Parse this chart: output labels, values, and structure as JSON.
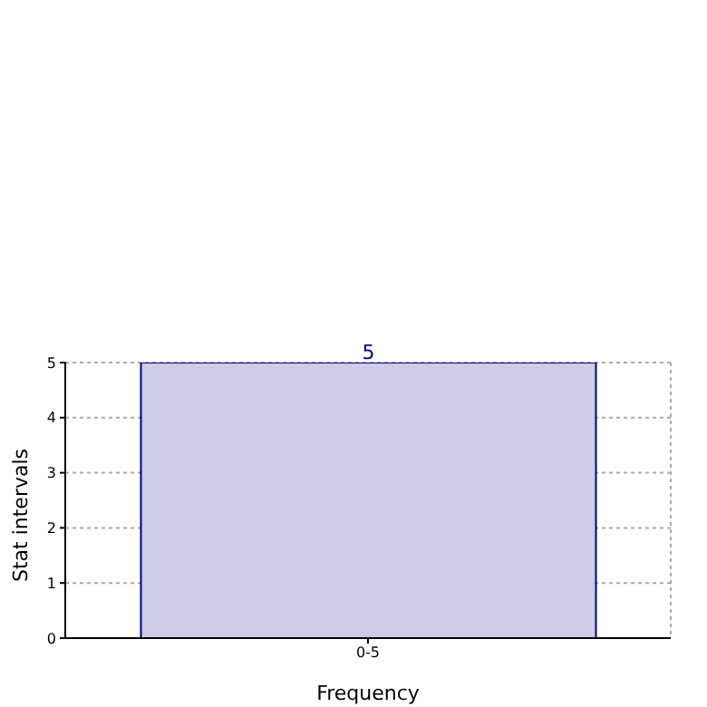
{
  "chart_data": {
    "type": "bar",
    "xlabel": "Frequency",
    "ylabel": "Stat intervals",
    "categories": [
      "0-5"
    ],
    "series": [
      {
        "color": "#ccccE5",
        "values": [
          5
        ]
      }
    ],
    "ylim": [
      0,
      5
    ],
    "yticks": [
      0,
      1,
      2,
      3,
      4,
      5
    ],
    "grid": true,
    "data_labels": true
  }
}
